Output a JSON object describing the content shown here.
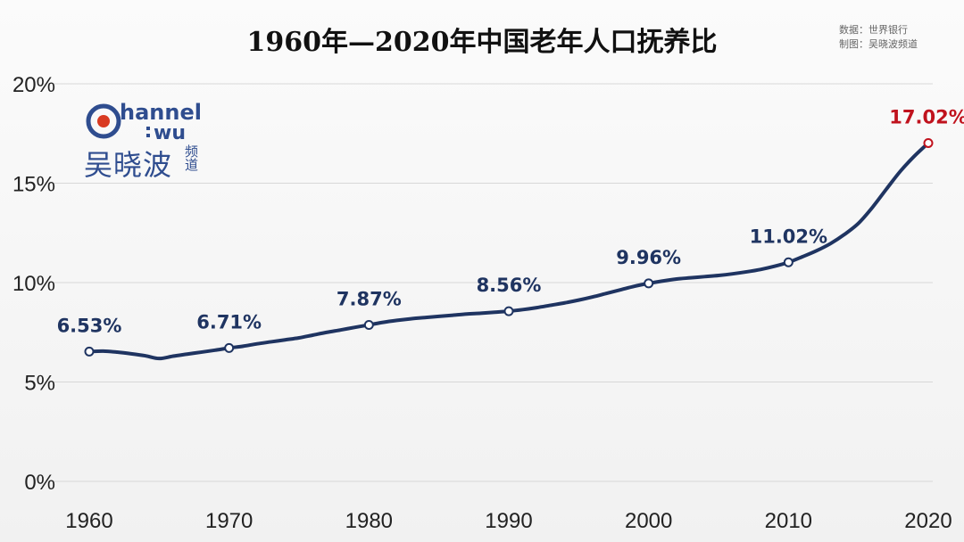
{
  "title": "1960年—2020年中国老年人口抚养比",
  "source": {
    "line1": "数据：世界银行",
    "line2": "制图：吴晓波频道"
  },
  "logo": {
    "text_en": "hannel",
    "text_wu": "wu",
    "text_cn": "吴晓波",
    "text_small": "频道"
  },
  "colors": {
    "line": "#1f3461",
    "highlight": "#c0121d",
    "grid": "#d8d8d8",
    "stem": "#2a3b6a"
  },
  "chart_data": {
    "type": "line",
    "title": "1960年—2020年中国老年人口抚养比",
    "xlabel": "",
    "ylabel": "",
    "x": [
      1960,
      1961,
      1962,
      1963,
      1964,
      1965,
      1966,
      1967,
      1968,
      1969,
      1970,
      1971,
      1972,
      1973,
      1974,
      1975,
      1976,
      1977,
      1978,
      1979,
      1980,
      1981,
      1982,
      1983,
      1984,
      1985,
      1986,
      1987,
      1988,
      1989,
      1990,
      1991,
      1992,
      1993,
      1994,
      1995,
      1996,
      1997,
      1998,
      1999,
      2000,
      2001,
      2002,
      2003,
      2004,
      2005,
      2006,
      2007,
      2008,
      2009,
      2010,
      2011,
      2012,
      2013,
      2014,
      2015,
      2016,
      2017,
      2018,
      2019,
      2020
    ],
    "y": [
      6.53,
      6.55,
      6.5,
      6.42,
      6.32,
      6.18,
      6.3,
      6.4,
      6.5,
      6.6,
      6.71,
      6.8,
      6.92,
      7.02,
      7.12,
      7.22,
      7.36,
      7.5,
      7.62,
      7.75,
      7.87,
      8.0,
      8.1,
      8.18,
      8.24,
      8.3,
      8.36,
      8.42,
      8.46,
      8.51,
      8.56,
      8.64,
      8.74,
      8.86,
      8.98,
      9.12,
      9.28,
      9.46,
      9.64,
      9.82,
      9.96,
      10.08,
      10.18,
      10.24,
      10.3,
      10.36,
      10.44,
      10.54,
      10.66,
      10.82,
      11.02,
      11.3,
      11.6,
      11.96,
      12.42,
      12.98,
      13.78,
      14.7,
      15.6,
      16.36,
      17.02
    ],
    "ylim": [
      0,
      20
    ],
    "yticks": [
      "0%",
      "5%",
      "10%",
      "15%",
      "20%"
    ],
    "xticks": [
      "1960",
      "1970",
      "1980",
      "1990",
      "2000",
      "2010",
      "2020"
    ],
    "labels": [
      {
        "x": 1960,
        "text": "6.53%"
      },
      {
        "x": 1970,
        "text": "6.71%"
      },
      {
        "x": 1980,
        "text": "7.87%"
      },
      {
        "x": 1990,
        "text": "8.56%"
      },
      {
        "x": 2000,
        "text": "9.96%"
      },
      {
        "x": 2010,
        "text": "11.02%"
      },
      {
        "x": 2020,
        "text": "17.02%",
        "highlight": true
      }
    ],
    "grid": true,
    "legend": "none"
  }
}
